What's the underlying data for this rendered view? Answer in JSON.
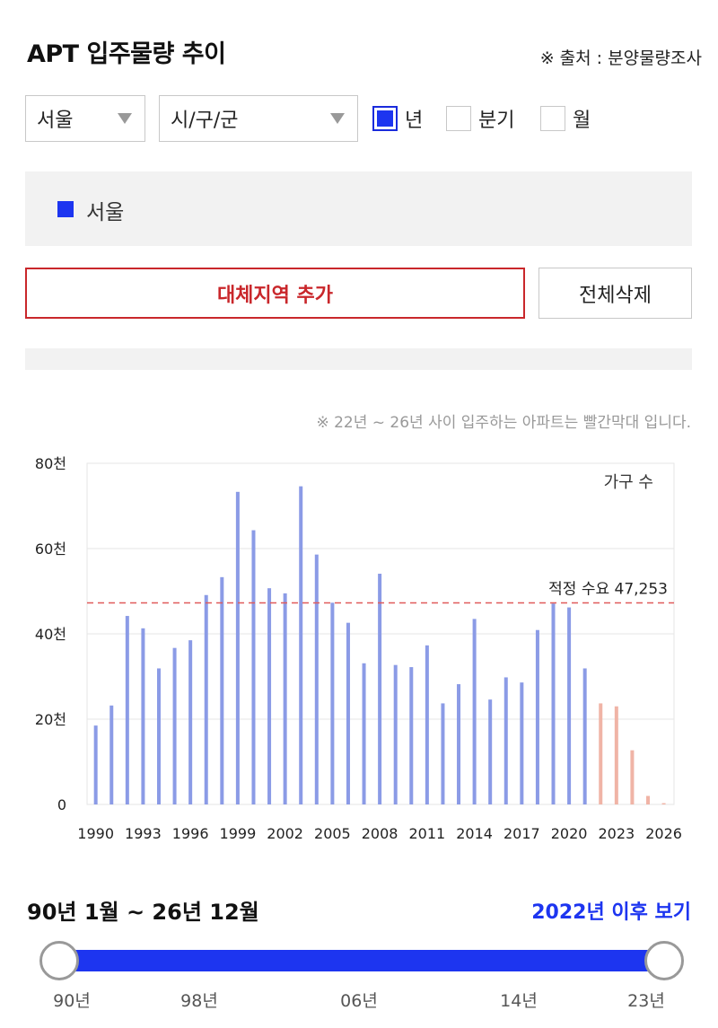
{
  "header": {
    "title": "APT 입주물량 추이",
    "source": "※ 출처 : 분양물량조사"
  },
  "filters": {
    "region": "서울",
    "district": "시/구/군",
    "periods": [
      {
        "label": "년",
        "checked": true
      },
      {
        "label": "분기",
        "checked": false
      },
      {
        "label": "월",
        "checked": false
      }
    ]
  },
  "legend": {
    "label": "서울",
    "color": "#1d35f0"
  },
  "buttons": {
    "add_region": "대체지역 추가",
    "delete_all": "전체삭제"
  },
  "note": "※ 22년 ~ 26년 사이 입주하는 아파트는 빨간막대 입니다.",
  "chart_data": {
    "type": "bar",
    "ylabel": "가구 수",
    "ylim": [
      0,
      80000
    ],
    "yticks": [
      {
        "value": 0,
        "label": "0"
      },
      {
        "value": 20000,
        "label": "20천"
      },
      {
        "value": 40000,
        "label": "40천"
      },
      {
        "value": 60000,
        "label": "60천"
      },
      {
        "value": 80000,
        "label": "80천"
      }
    ],
    "xtick_labels": [
      "1990",
      "1993",
      "1996",
      "1999",
      "2002",
      "2005",
      "2008",
      "2011",
      "2014",
      "2017",
      "2020",
      "2023",
      "2026"
    ],
    "categories": [
      1990,
      1991,
      1992,
      1993,
      1994,
      1995,
      1996,
      1997,
      1998,
      1999,
      2000,
      2001,
      2002,
      2003,
      2004,
      2005,
      2006,
      2007,
      2008,
      2009,
      2010,
      2011,
      2012,
      2013,
      2014,
      2015,
      2016,
      2017,
      2018,
      2019,
      2020,
      2021,
      2022,
      2023,
      2024,
      2025,
      2026
    ],
    "values": [
      18500,
      23200,
      44200,
      41300,
      31900,
      36700,
      38500,
      49100,
      53300,
      73300,
      64300,
      50700,
      49500,
      74600,
      58600,
      47300,
      42600,
      33100,
      54100,
      32700,
      32200,
      37300,
      23700,
      28200,
      43500,
      24600,
      29800,
      28600,
      40900,
      47100,
      46200,
      31900,
      23700,
      23000,
      12700,
      2000,
      300
    ],
    "highlight_from": 2022,
    "colors": {
      "normal": "#8b9be6",
      "future": "#f0b4a6",
      "reference": "#e05a5a",
      "grid": "#e6e6e6"
    },
    "reference_line": {
      "value": 47253,
      "label": "적정 수요 47,253"
    },
    "grid": true
  },
  "range": {
    "text": "90년 1월 ~ 26년 12월",
    "after_link": "2022년 이후 보기",
    "slider_labels": [
      "90년",
      "98년",
      "06년",
      "14년",
      "23년"
    ],
    "selected_from": "90년",
    "selected_to": "23년"
  }
}
